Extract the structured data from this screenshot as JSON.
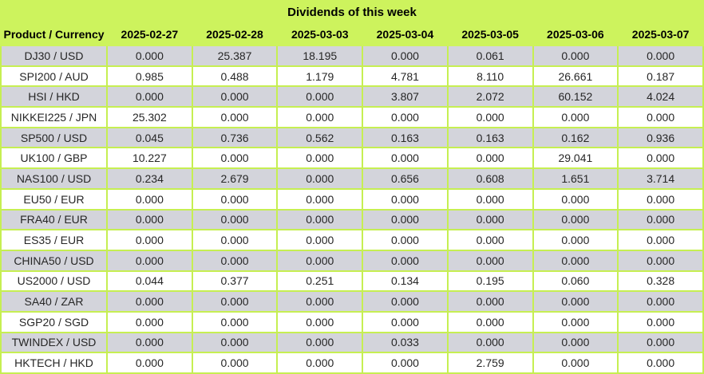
{
  "title": "Dividends of this week",
  "table": {
    "product_header": "Product / Currency",
    "date_headers": [
      "2025-02-27",
      "2025-02-28",
      "2025-03-03",
      "2025-03-04",
      "2025-03-05",
      "2025-03-06",
      "2025-03-07"
    ],
    "rows": [
      {
        "product": "DJ30 / USD",
        "values": [
          "0.000",
          "25.387",
          "18.195",
          "0.000",
          "0.061",
          "0.000",
          "0.000"
        ]
      },
      {
        "product": "SPI200 / AUD",
        "values": [
          "0.985",
          "0.488",
          "1.179",
          "4.781",
          "8.110",
          "26.661",
          "0.187"
        ]
      },
      {
        "product": "HSI / HKD",
        "values": [
          "0.000",
          "0.000",
          "0.000",
          "3.807",
          "2.072",
          "60.152",
          "4.024"
        ]
      },
      {
        "product": "NIKKEI225 / JPN",
        "values": [
          "25.302",
          "0.000",
          "0.000",
          "0.000",
          "0.000",
          "0.000",
          "0.000"
        ]
      },
      {
        "product": "SP500 / USD",
        "values": [
          "0.045",
          "0.736",
          "0.562",
          "0.163",
          "0.163",
          "0.162",
          "0.936"
        ]
      },
      {
        "product": "UK100 / GBP",
        "values": [
          "10.227",
          "0.000",
          "0.000",
          "0.000",
          "0.000",
          "29.041",
          "0.000"
        ]
      },
      {
        "product": "NAS100 / USD",
        "values": [
          "0.234",
          "2.679",
          "0.000",
          "0.656",
          "0.608",
          "1.651",
          "3.714"
        ]
      },
      {
        "product": "EU50 / EUR",
        "values": [
          "0.000",
          "0.000",
          "0.000",
          "0.000",
          "0.000",
          "0.000",
          "0.000"
        ]
      },
      {
        "product": "FRA40 / EUR",
        "values": [
          "0.000",
          "0.000",
          "0.000",
          "0.000",
          "0.000",
          "0.000",
          "0.000"
        ]
      },
      {
        "product": "ES35 / EUR",
        "values": [
          "0.000",
          "0.000",
          "0.000",
          "0.000",
          "0.000",
          "0.000",
          "0.000"
        ]
      },
      {
        "product": "CHINA50 / USD",
        "values": [
          "0.000",
          "0.000",
          "0.000",
          "0.000",
          "0.000",
          "0.000",
          "0.000"
        ]
      },
      {
        "product": "US2000 / USD",
        "values": [
          "0.044",
          "0.377",
          "0.251",
          "0.134",
          "0.195",
          "0.060",
          "0.328"
        ]
      },
      {
        "product": "SA40 / ZAR",
        "values": [
          "0.000",
          "0.000",
          "0.000",
          "0.000",
          "0.000",
          "0.000",
          "0.000"
        ]
      },
      {
        "product": "SGP20 / SGD",
        "values": [
          "0.000",
          "0.000",
          "0.000",
          "0.000",
          "0.000",
          "0.000",
          "0.000"
        ]
      },
      {
        "product": "TWINDEX / USD",
        "values": [
          "0.000",
          "0.000",
          "0.000",
          "0.033",
          "0.000",
          "0.000",
          "0.000"
        ]
      },
      {
        "product": "HKTECH / HKD",
        "values": [
          "0.000",
          "0.000",
          "0.000",
          "0.000",
          "2.759",
          "0.000",
          "0.000"
        ]
      }
    ]
  },
  "colors": {
    "header_bg": "#cdf35d",
    "grid_border": "#c6ef52",
    "alt_row_bg": "#d3d4db",
    "row_bg": "#ffffff",
    "header_text": "#000000",
    "value_text": "#262626"
  }
}
